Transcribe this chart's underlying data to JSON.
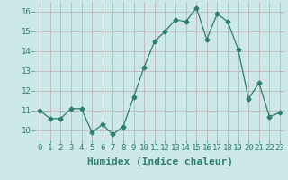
{
  "x": [
    0,
    1,
    2,
    3,
    4,
    5,
    6,
    7,
    8,
    9,
    10,
    11,
    12,
    13,
    14,
    15,
    16,
    17,
    18,
    19,
    20,
    21,
    22,
    23
  ],
  "y": [
    11.0,
    10.6,
    10.6,
    11.1,
    11.1,
    9.9,
    10.3,
    9.8,
    10.2,
    11.7,
    13.2,
    14.5,
    15.0,
    15.6,
    15.5,
    16.2,
    14.6,
    15.9,
    15.5,
    14.1,
    11.6,
    12.4,
    10.7,
    10.9
  ],
  "line_color": "#2e7d6e",
  "marker": "D",
  "marker_size": 2.5,
  "bg_color": "#cce8e8",
  "grid_color": "#c0aaaa",
  "xlabel": "Humidex (Indice chaleur)",
  "xlabel_fontsize": 8,
  "yticks": [
    10,
    11,
    12,
    13,
    14,
    15,
    16
  ],
  "xticks": [
    0,
    1,
    2,
    3,
    4,
    5,
    6,
    7,
    8,
    9,
    10,
    11,
    12,
    13,
    14,
    15,
    16,
    17,
    18,
    19,
    20,
    21,
    22,
    23
  ],
  "ylim": [
    9.5,
    16.5
  ],
  "xlim": [
    -0.5,
    23.5
  ],
  "tick_fontsize": 6.5
}
